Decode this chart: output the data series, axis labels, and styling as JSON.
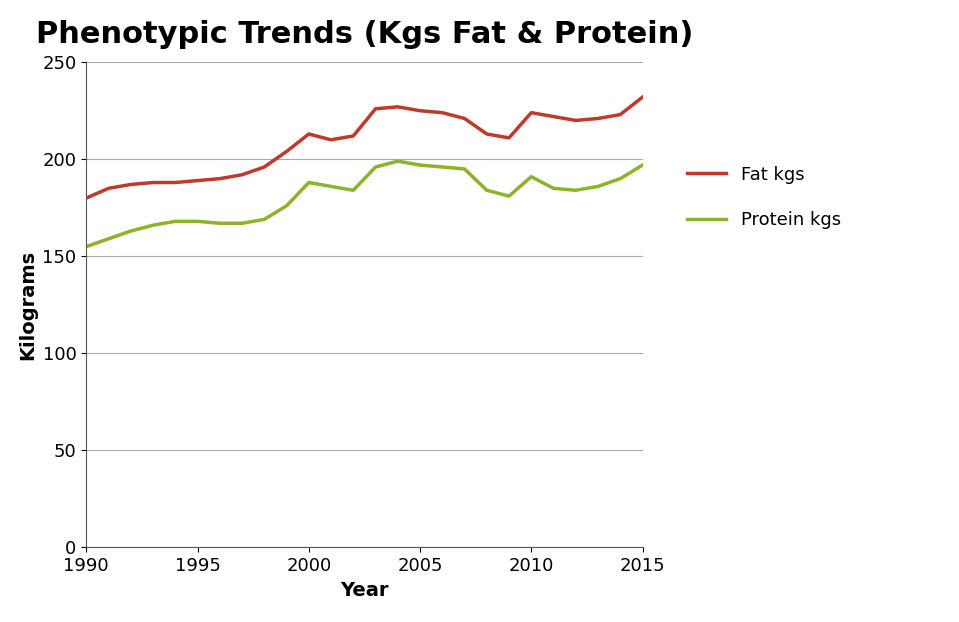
{
  "title": "Phenotypic Trends (Kgs Fat & Protein)",
  "xlabel": "Year",
  "ylabel": "Kilograms",
  "xlim": [
    1990,
    2015
  ],
  "ylim": [
    0,
    250
  ],
  "yticks": [
    0,
    50,
    100,
    150,
    200,
    250
  ],
  "xticks": [
    1990,
    1995,
    2000,
    2005,
    2010,
    2015
  ],
  "fat_color": "#C0392B",
  "protein_color": "#8DB32A",
  "fat_label": "Fat kgs",
  "protein_label": "Protein kgs",
  "years": [
    1990,
    1991,
    1992,
    1993,
    1994,
    1995,
    1996,
    1997,
    1998,
    1999,
    2000,
    2001,
    2002,
    2003,
    2004,
    2005,
    2006,
    2007,
    2008,
    2009,
    2010,
    2011,
    2012,
    2013,
    2014,
    2015
  ],
  "fat_kgs": [
    180,
    185,
    187,
    188,
    188,
    189,
    190,
    192,
    196,
    204,
    213,
    210,
    212,
    226,
    227,
    225,
    224,
    221,
    213,
    211,
    224,
    222,
    220,
    221,
    223,
    232
  ],
  "protein_kgs": [
    155,
    159,
    163,
    166,
    168,
    168,
    167,
    167,
    169,
    176,
    188,
    186,
    184,
    196,
    199,
    197,
    196,
    195,
    184,
    181,
    191,
    185,
    184,
    186,
    190,
    197
  ],
  "background_color": "#ffffff",
  "title_fontsize": 22,
  "axis_label_fontsize": 14,
  "tick_fontsize": 13,
  "legend_fontsize": 13,
  "line_width": 2.5
}
